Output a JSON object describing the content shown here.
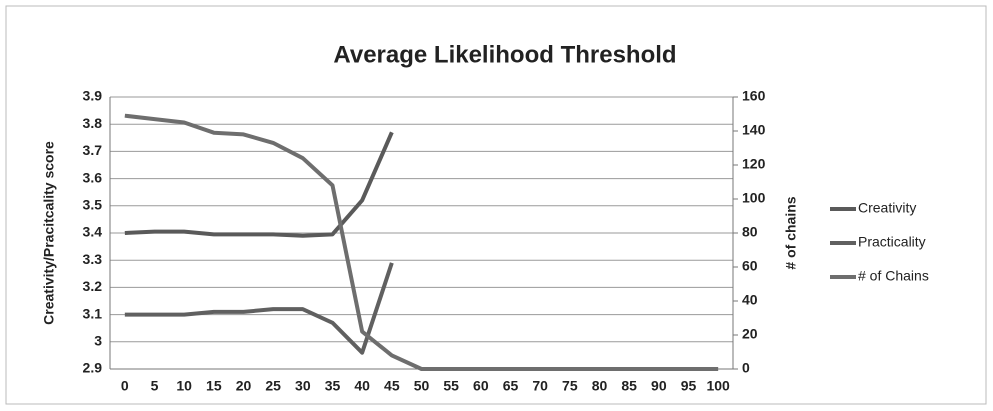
{
  "chart_data": {
    "type": "line",
    "title": "Average Likelihood Threshold",
    "y_label": "Creativity/Pracitcality score",
    "y2_label": "# of chains",
    "categories": [
      "0",
      "5",
      "10",
      "15",
      "20",
      "25",
      "30",
      "35",
      "40",
      "45",
      "50",
      "55",
      "60",
      "65",
      "70",
      "75",
      "80",
      "85",
      "90",
      "95",
      "100"
    ],
    "series": [
      {
        "name": "Creativity",
        "color": "#5a5a5a",
        "axis": "y",
        "values": [
          3.4,
          3.405,
          3.405,
          3.395,
          3.395,
          3.395,
          3.39,
          3.395,
          3.52,
          3.77,
          null,
          null,
          null,
          null,
          null,
          null,
          null,
          null,
          null,
          null,
          null
        ]
      },
      {
        "name": "Practicality",
        "color": "#606060",
        "axis": "y",
        "values": [
          3.1,
          3.1,
          3.1,
          3.11,
          3.11,
          3.12,
          3.12,
          3.07,
          2.96,
          3.29,
          null,
          null,
          null,
          null,
          null,
          null,
          null,
          null,
          null,
          null,
          null
        ]
      },
      {
        "name": "# of Chains",
        "color": "#6e6e6e",
        "axis": "y2",
        "values": [
          149,
          147,
          145,
          139,
          138,
          133,
          124,
          108,
          22,
          8,
          0,
          0,
          0,
          0,
          0,
          0,
          0,
          0,
          0,
          0,
          0
        ]
      }
    ],
    "ylim": [
      2.9,
      3.9
    ],
    "yticks": [
      2.9,
      3,
      3.1,
      3.2,
      3.3,
      3.4,
      3.5,
      3.6,
      3.7,
      3.8,
      3.9
    ],
    "y2lim": [
      0,
      160
    ],
    "y2ticks": [
      0,
      20,
      40,
      60,
      80,
      100,
      120,
      140,
      160
    ],
    "grid": true,
    "legend": "right"
  }
}
